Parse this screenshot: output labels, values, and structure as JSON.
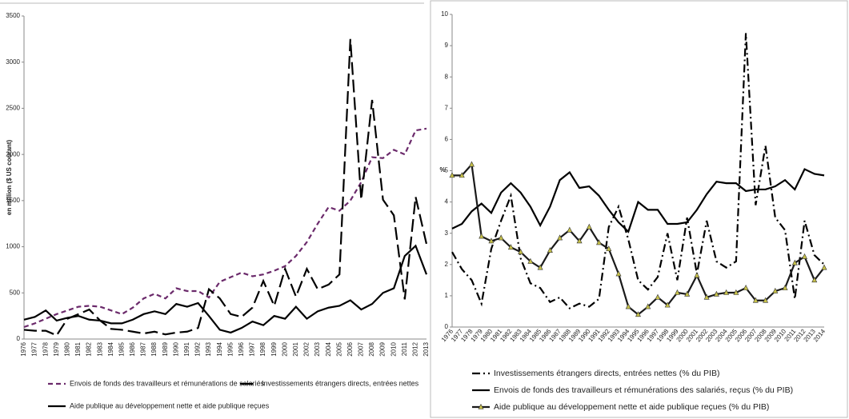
{
  "chart_data": [
    {
      "type": "line",
      "y_label": "en million ($ US courant)",
      "categories": [
        "1976",
        "1977",
        "1978",
        "1979",
        "1980",
        "1981",
        "1982",
        "1983",
        "1984",
        "1985",
        "1986",
        "1987",
        "1988",
        "1989",
        "1990",
        "1991",
        "1992",
        "1993",
        "1994",
        "1995",
        "1996",
        "1997",
        "1998",
        "1999",
        "2000",
        "2001",
        "2002",
        "2003",
        "2004",
        "2005",
        "2006",
        "2007",
        "2008",
        "2009",
        "2010",
        "2011",
        "2012",
        "2013"
      ],
      "ylim": [
        0,
        3500
      ],
      "yticks": [
        0,
        500,
        1000,
        1500,
        2000,
        2500,
        3000,
        3500
      ],
      "grid": false,
      "series": [
        {
          "name": "Envois de fonds des travailleurs et rémunérations de salariés",
          "color": "#6b2a6b",
          "dash": "dashed",
          "values": [
            130,
            170,
            220,
            270,
            310,
            350,
            360,
            350,
            310,
            270,
            340,
            440,
            490,
            440,
            550,
            520,
            520,
            450,
            620,
            670,
            720,
            680,
            700,
            740,
            790,
            900,
            1050,
            1250,
            1430,
            1390,
            1500,
            1700,
            1970,
            1960,
            2050,
            2000,
            2260,
            2280
          ]
        },
        {
          "name": "Investissements étrangers directs, entrées nettes",
          "color": "#000000",
          "dash": "long-dash",
          "values": [
            100,
            90,
            90,
            40,
            220,
            270,
            320,
            200,
            110,
            100,
            80,
            60,
            80,
            50,
            70,
            80,
            120,
            540,
            440,
            270,
            240,
            340,
            630,
            360,
            760,
            460,
            760,
            540,
            590,
            700,
            3250,
            1510,
            2590,
            1510,
            1340,
            430,
            1540,
            1030
          ]
        },
        {
          "name": "Aide publique au développement nette et aide publique reçues",
          "color": "#000000",
          "dash": "solid",
          "values": [
            210,
            240,
            310,
            200,
            230,
            250,
            210,
            200,
            170,
            170,
            210,
            270,
            300,
            270,
            380,
            350,
            390,
            250,
            100,
            70,
            120,
            190,
            150,
            250,
            220,
            350,
            220,
            300,
            340,
            360,
            420,
            320,
            380,
            500,
            550,
            900,
            1010,
            700
          ]
        }
      ]
    },
    {
      "type": "line",
      "y_label": "%",
      "categories": [
        "1976",
        "1977",
        "1978",
        "1979",
        "1980",
        "1981",
        "1982",
        "1983",
        "1984",
        "1985",
        "1986",
        "1987",
        "1988",
        "1989",
        "1990",
        "1991",
        "1992",
        "1993",
        "1994",
        "1995",
        "1996",
        "1997",
        "1998",
        "1999",
        "2000",
        "2001",
        "2002",
        "2003",
        "2004",
        "2005",
        "2006",
        "2007",
        "2008",
        "2009",
        "2010",
        "2011",
        "2012",
        "2013",
        "2014"
      ],
      "ylim": [
        0,
        10
      ],
      "yticks": [
        0,
        1,
        2,
        3,
        4,
        5,
        6,
        7,
        8,
        9,
        10
      ],
      "grid": false,
      "series": [
        {
          "name": "Investissements étrangers directs, entrées nettes (% du PIB)",
          "color": "#000000",
          "dash": "dash-dot",
          "values": [
            2.4,
            1.85,
            1.5,
            0.75,
            2.5,
            3.4,
            4.2,
            2.2,
            1.4,
            1.25,
            0.8,
            0.95,
            0.6,
            0.75,
            0.65,
            0.9,
            3.2,
            3.85,
            2.8,
            1.5,
            1.2,
            1.6,
            3.0,
            1.5,
            3.5,
            1.7,
            3.4,
            2.1,
            1.9,
            2.1,
            9.4,
            3.9,
            5.8,
            3.5,
            3.1,
            0.9,
            3.4,
            2.3,
            2.0
          ]
        },
        {
          "name": "Envois de fonds des travailleurs et rémunérations des salariés, reçus (% du PIB)",
          "color": "#000000",
          "dash": "solid",
          "values": [
            3.15,
            3.3,
            3.7,
            3.95,
            3.65,
            4.3,
            4.6,
            4.3,
            3.85,
            3.25,
            3.85,
            4.7,
            4.95,
            4.45,
            4.5,
            4.2,
            3.75,
            3.35,
            3.05,
            4.0,
            3.75,
            3.75,
            3.3,
            3.3,
            3.35,
            3.75,
            4.25,
            4.65,
            4.6,
            4.6,
            4.35,
            4.4,
            4.4,
            4.5,
            4.7,
            4.4,
            5.05,
            4.9,
            4.85
          ]
        },
        {
          "name": "Aide publique au développement nette et aide publique reçues  (% du PIB)",
          "color": "#1a1a1a",
          "dash": "solid",
          "marker": "triangle",
          "marker_color": "#c8c24a",
          "values": [
            4.85,
            4.85,
            5.2,
            2.9,
            2.75,
            2.85,
            2.55,
            2.4,
            2.1,
            1.9,
            2.45,
            2.85,
            3.1,
            2.75,
            3.2,
            2.7,
            2.5,
            1.7,
            0.65,
            0.4,
            0.65,
            0.95,
            0.7,
            1.1,
            1.05,
            1.65,
            0.95,
            1.05,
            1.1,
            1.1,
            1.25,
            0.85,
            0.85,
            1.15,
            1.25,
            2.05,
            2.25,
            1.5,
            1.9
          ]
        }
      ]
    }
  ]
}
